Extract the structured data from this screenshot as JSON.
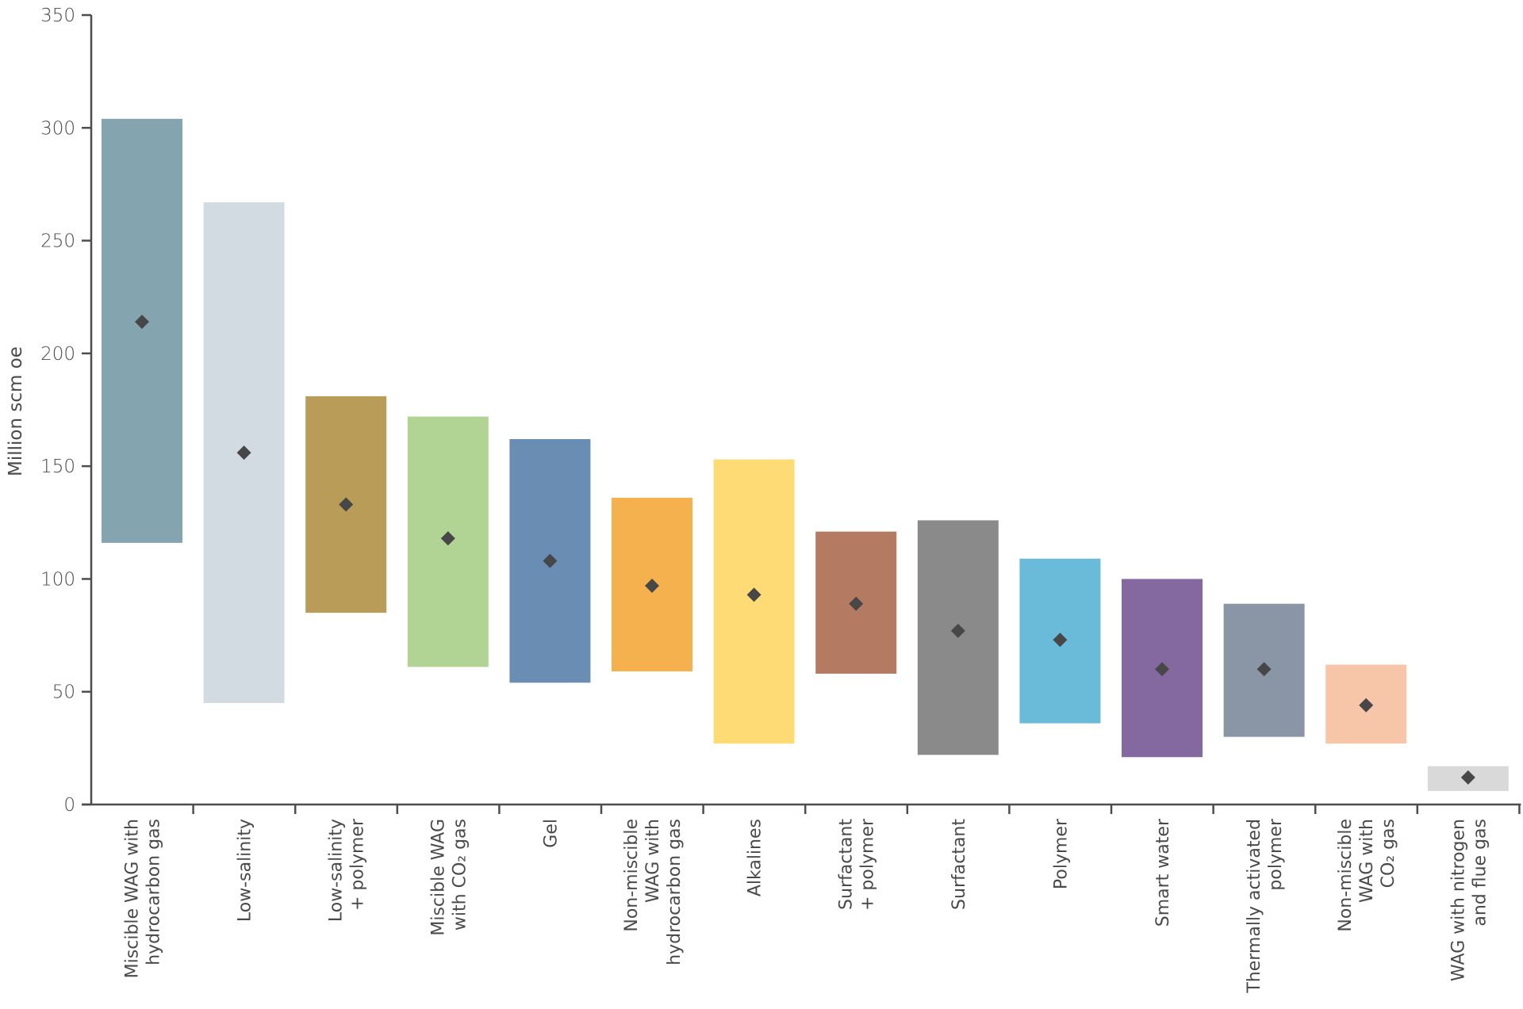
{
  "chart_data": {
    "type": "range-bar",
    "title": "",
    "xlabel": "",
    "ylabel": "Million scm oe",
    "ylim": [
      0,
      350
    ],
    "yticks": [
      0,
      50,
      100,
      150,
      200,
      250,
      300,
      350
    ],
    "grid": false,
    "legend": null,
    "marker": "diamond (expected / mid value)",
    "categories": [
      [
        "Miscible WAG with",
        "hydrocarbon gas"
      ],
      [
        "Low-salinity"
      ],
      [
        "Low-salinity",
        "+ polymer"
      ],
      [
        "Miscible WAG",
        "with CO₂ gas"
      ],
      [
        "Gel"
      ],
      [
        "Non-miscible",
        "WAG with",
        "hydrocarbon gas"
      ],
      [
        "Alkalines"
      ],
      [
        "Surfactant",
        "+ polymer"
      ],
      [
        "Surfactant"
      ],
      [
        "Polymer"
      ],
      [
        "Smart water"
      ],
      [
        "Thermally activated",
        "polymer"
      ],
      [
        "Non-miscible",
        "WAG with",
        "CO₂ gas"
      ],
      [
        "WAG with nitrogen",
        "and flue gas"
      ]
    ],
    "series": [
      {
        "name": "low",
        "values": [
          116,
          45,
          85,
          61,
          54,
          59,
          27,
          58,
          22,
          36,
          21,
          30,
          27,
          6
        ]
      },
      {
        "name": "high",
        "values": [
          304,
          267,
          181,
          172,
          162,
          136,
          153,
          121,
          126,
          109,
          100,
          89,
          62,
          17
        ]
      },
      {
        "name": "expected",
        "values": [
          214,
          156,
          133,
          118,
          108,
          97,
          93,
          89,
          77,
          73,
          60,
          60,
          44,
          12
        ]
      }
    ],
    "colors": [
      "#84a5b0",
      "#d2dbe1",
      "#b89c58",
      "#b1d495",
      "#6a8db3",
      "#f5b14e",
      "#fedb74",
      "#b47b62",
      "#8a8a8a",
      "#6abbd9",
      "#8469a0",
      "#8a96a6",
      "#f7c6a8",
      "#d9d9d9"
    ],
    "marker_color": "#474747"
  }
}
